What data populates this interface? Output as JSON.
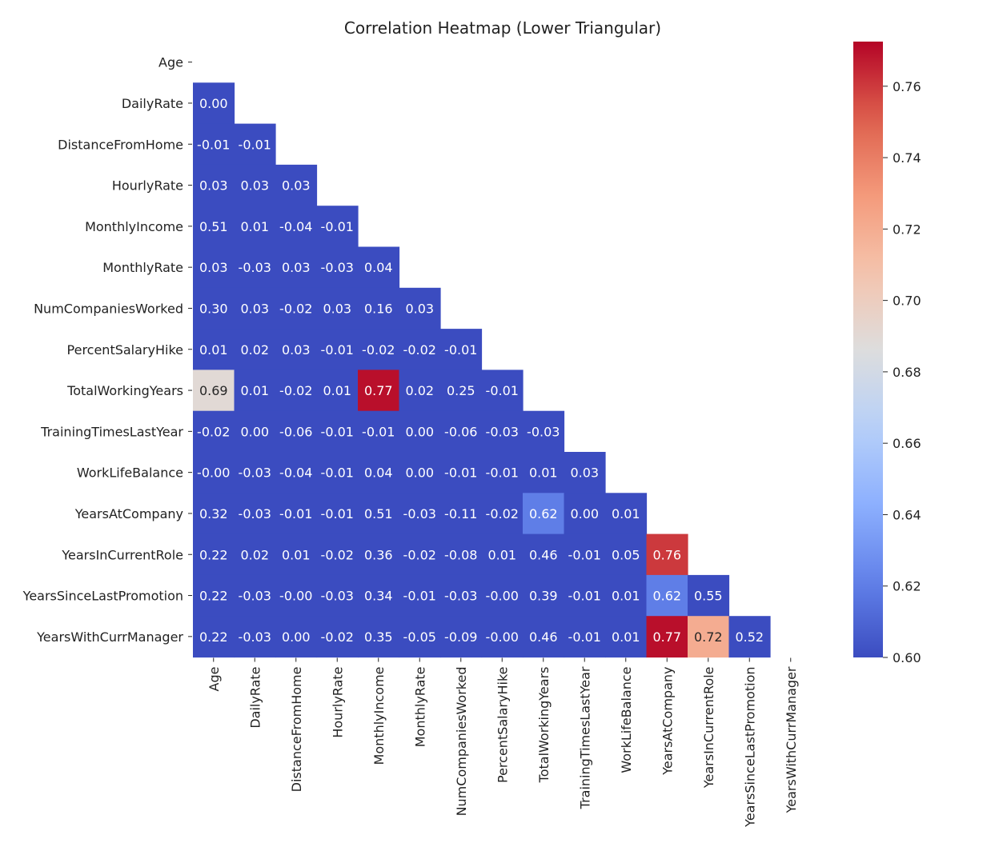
{
  "chart_data": {
    "type": "heatmap",
    "title": "Correlation Heatmap (Lower Triangular)",
    "variables": [
      "Age",
      "DailyRate",
      "DistanceFromHome",
      "HourlyRate",
      "MonthlyIncome",
      "MonthlyRate",
      "NumCompaniesWorked",
      "PercentSalaryHike",
      "TotalWorkingYears",
      "TrainingTimesLastYear",
      "WorkLifeBalance",
      "YearsAtCompany",
      "YearsInCurrentRole",
      "YearsSinceLastPromotion",
      "YearsWithCurrManager"
    ],
    "lower_triangle_values": [
      [],
      [
        "0.00"
      ],
      [
        "-0.01",
        "-0.01"
      ],
      [
        "0.03",
        "0.03",
        "0.03"
      ],
      [
        "0.51",
        "0.01",
        "-0.04",
        "-0.01"
      ],
      [
        "0.03",
        "-0.03",
        "0.03",
        "-0.03",
        "0.04"
      ],
      [
        "0.30",
        "0.03",
        "-0.02",
        "0.03",
        "0.16",
        "0.03"
      ],
      [
        "0.01",
        "0.02",
        "0.03",
        "-0.01",
        "-0.02",
        "-0.02",
        "-0.01"
      ],
      [
        "0.69",
        "0.01",
        "-0.02",
        "0.01",
        "0.77",
        "0.02",
        "0.25",
        "-0.01"
      ],
      [
        "-0.02",
        "0.00",
        "-0.06",
        "-0.01",
        "-0.01",
        "0.00",
        "-0.06",
        "-0.03",
        "-0.03"
      ],
      [
        "-0.00",
        "-0.03",
        "-0.04",
        "-0.01",
        "0.04",
        "0.00",
        "-0.01",
        "-0.01",
        "0.01",
        "0.03"
      ],
      [
        "0.32",
        "-0.03",
        "-0.01",
        "-0.01",
        "0.51",
        "-0.03",
        "-0.11",
        "-0.02",
        "0.62",
        "0.00",
        "0.01"
      ],
      [
        "0.22",
        "0.02",
        "0.01",
        "-0.02",
        "0.36",
        "-0.02",
        "-0.08",
        "0.01",
        "0.46",
        "-0.01",
        "0.05",
        "0.76"
      ],
      [
        "0.22",
        "-0.03",
        "-0.00",
        "-0.03",
        "0.34",
        "-0.01",
        "-0.03",
        "-0.00",
        "0.39",
        "-0.01",
        "0.01",
        "0.62",
        "0.55"
      ],
      [
        "0.22",
        "-0.03",
        "0.00",
        "-0.02",
        "0.35",
        "-0.05",
        "-0.09",
        "-0.00",
        "0.46",
        "-0.01",
        "0.01",
        "0.77",
        "0.72",
        "0.52"
      ]
    ],
    "color_scale": {
      "colormap": "coolwarm",
      "vmin": 0.6,
      "vmax": 0.7725,
      "ticks": [
        "0.60",
        "0.62",
        "0.64",
        "0.66",
        "0.68",
        "0.70",
        "0.72",
        "0.74",
        "0.76"
      ]
    },
    "grid": false,
    "legend": "right colorbar"
  }
}
